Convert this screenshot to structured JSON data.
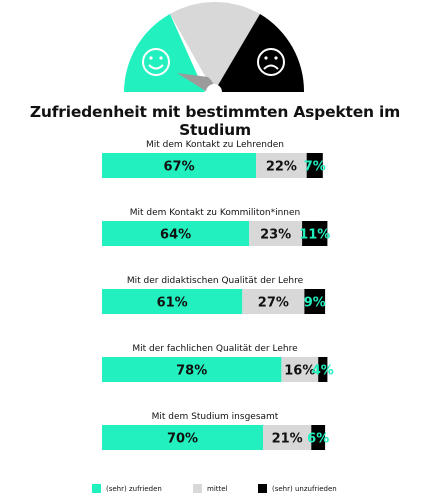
{
  "title": "Zufriedenheit mit bestimmten Aspekten im Studium",
  "colors": {
    "satisfied": "#22f0bf",
    "neutral": "#d8d8d8",
    "unsatisfied": "#000000",
    "needle": "#9b9b9b"
  },
  "icons": [
    "happy-face-icon",
    "sad-face-icon"
  ],
  "legend": [
    {
      "label": "(sehr) zufrieden",
      "color": "#22f0bf"
    },
    {
      "label": "mittel",
      "color": "#d8d8d8"
    },
    {
      "label": "(sehr) unzufrieden",
      "color": "#000000"
    }
  ],
  "chart_data": {
    "type": "bar",
    "stacked": true,
    "orientation": "horizontal",
    "categories": [
      "Mit dem Kontakt zu Lehrenden",
      "Mit dem Kontakt zu Kommiliton*innen",
      "Mit der didaktischen Qualität der Lehre",
      "Mit der fachlichen Qualität der Lehre",
      "Mit dem Studium insgesamt"
    ],
    "series": [
      {
        "name": "(sehr) zufrieden",
        "values": [
          67,
          64,
          61,
          78,
          70
        ],
        "labels": [
          "67%",
          "64%",
          "61%",
          "78%",
          "70%"
        ]
      },
      {
        "name": "mittel",
        "values": [
          22,
          23,
          27,
          16,
          21
        ],
        "labels": [
          "22%",
          "23%",
          "27%",
          "16%",
          "21%"
        ]
      },
      {
        "name": "(sehr) unzufrieden",
        "values": [
          7,
          11,
          9,
          4,
          6
        ],
        "labels": [
          "7%",
          "11%",
          "9%",
          "4%",
          "6%"
        ]
      }
    ]
  }
}
